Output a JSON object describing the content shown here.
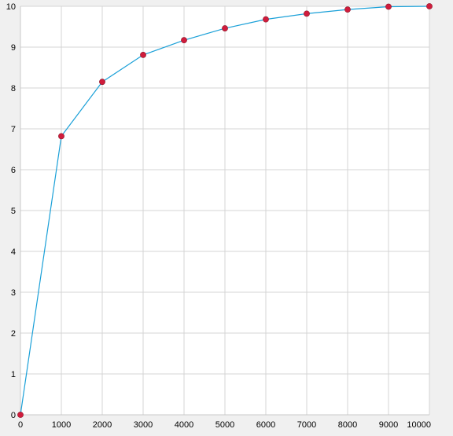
{
  "chart_data": {
    "type": "line",
    "title": "",
    "xlabel": "",
    "ylabel": "",
    "xlim": [
      0,
      10000
    ],
    "ylim": [
      0,
      10
    ],
    "x_ticks": [
      "0",
      "1000",
      "2000",
      "3000",
      "4000",
      "5000",
      "6000",
      "7000",
      "8000",
      "9000",
      "10000"
    ],
    "y_ticks": [
      "0",
      "1",
      "2",
      "3",
      "4",
      "5",
      "6",
      "7",
      "8",
      "9",
      "10"
    ],
    "grid": true,
    "legend": "none",
    "series": [
      {
        "x": [
          0,
          1000,
          2000,
          3000,
          4000,
          5000,
          6000,
          7000,
          8000,
          9000,
          10000
        ],
        "y": [
          0,
          6.82,
          8.15,
          8.81,
          9.17,
          9.46,
          9.68,
          9.82,
          9.92,
          9.99,
          10.0
        ],
        "line_color": "#1aa0d8",
        "marker_color": "#d01c3c"
      }
    ],
    "colors": {
      "plot_background": "#ffffff",
      "panel_background": "#f0f0f0",
      "grid": "#d4d4d4"
    }
  }
}
